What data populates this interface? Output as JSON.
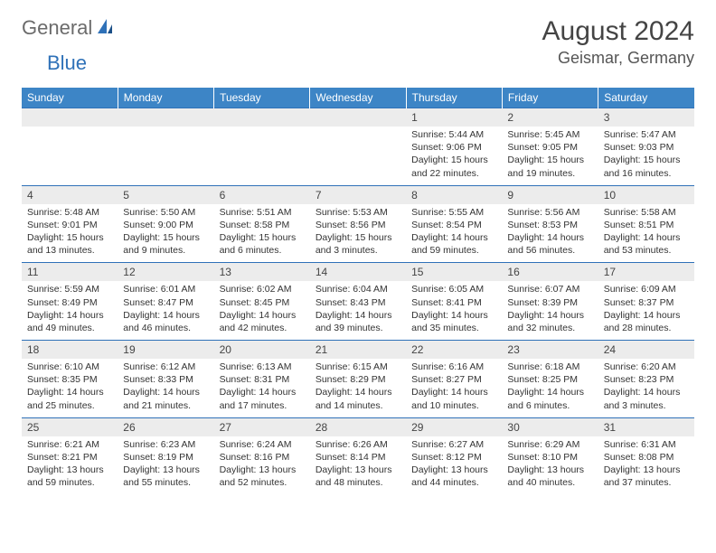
{
  "logo": {
    "general": "General",
    "blue": "Blue"
  },
  "title": "August 2024",
  "location": "Geismar, Germany",
  "colors": {
    "header_bg": "#3d85c6",
    "header_fg": "#ffffff",
    "daynum_bg": "#ececec",
    "rule": "#2f71b8",
    "logo_gray": "#6b6b6b",
    "logo_blue": "#2f71b8"
  },
  "weekdays": [
    "Sunday",
    "Monday",
    "Tuesday",
    "Wednesday",
    "Thursday",
    "Friday",
    "Saturday"
  ],
  "weeks": [
    {
      "nums": [
        "",
        "",
        "",
        "",
        "1",
        "2",
        "3"
      ],
      "cells": [
        {},
        {},
        {},
        {},
        {
          "sr": "Sunrise: 5:44 AM",
          "ss": "Sunset: 9:06 PM",
          "d1": "Daylight: 15 hours",
          "d2": "and 22 minutes."
        },
        {
          "sr": "Sunrise: 5:45 AM",
          "ss": "Sunset: 9:05 PM",
          "d1": "Daylight: 15 hours",
          "d2": "and 19 minutes."
        },
        {
          "sr": "Sunrise: 5:47 AM",
          "ss": "Sunset: 9:03 PM",
          "d1": "Daylight: 15 hours",
          "d2": "and 16 minutes."
        }
      ]
    },
    {
      "nums": [
        "4",
        "5",
        "6",
        "7",
        "8",
        "9",
        "10"
      ],
      "cells": [
        {
          "sr": "Sunrise: 5:48 AM",
          "ss": "Sunset: 9:01 PM",
          "d1": "Daylight: 15 hours",
          "d2": "and 13 minutes."
        },
        {
          "sr": "Sunrise: 5:50 AM",
          "ss": "Sunset: 9:00 PM",
          "d1": "Daylight: 15 hours",
          "d2": "and 9 minutes."
        },
        {
          "sr": "Sunrise: 5:51 AM",
          "ss": "Sunset: 8:58 PM",
          "d1": "Daylight: 15 hours",
          "d2": "and 6 minutes."
        },
        {
          "sr": "Sunrise: 5:53 AM",
          "ss": "Sunset: 8:56 PM",
          "d1": "Daylight: 15 hours",
          "d2": "and 3 minutes."
        },
        {
          "sr": "Sunrise: 5:55 AM",
          "ss": "Sunset: 8:54 PM",
          "d1": "Daylight: 14 hours",
          "d2": "and 59 minutes."
        },
        {
          "sr": "Sunrise: 5:56 AM",
          "ss": "Sunset: 8:53 PM",
          "d1": "Daylight: 14 hours",
          "d2": "and 56 minutes."
        },
        {
          "sr": "Sunrise: 5:58 AM",
          "ss": "Sunset: 8:51 PM",
          "d1": "Daylight: 14 hours",
          "d2": "and 53 minutes."
        }
      ]
    },
    {
      "nums": [
        "11",
        "12",
        "13",
        "14",
        "15",
        "16",
        "17"
      ],
      "cells": [
        {
          "sr": "Sunrise: 5:59 AM",
          "ss": "Sunset: 8:49 PM",
          "d1": "Daylight: 14 hours",
          "d2": "and 49 minutes."
        },
        {
          "sr": "Sunrise: 6:01 AM",
          "ss": "Sunset: 8:47 PM",
          "d1": "Daylight: 14 hours",
          "d2": "and 46 minutes."
        },
        {
          "sr": "Sunrise: 6:02 AM",
          "ss": "Sunset: 8:45 PM",
          "d1": "Daylight: 14 hours",
          "d2": "and 42 minutes."
        },
        {
          "sr": "Sunrise: 6:04 AM",
          "ss": "Sunset: 8:43 PM",
          "d1": "Daylight: 14 hours",
          "d2": "and 39 minutes."
        },
        {
          "sr": "Sunrise: 6:05 AM",
          "ss": "Sunset: 8:41 PM",
          "d1": "Daylight: 14 hours",
          "d2": "and 35 minutes."
        },
        {
          "sr": "Sunrise: 6:07 AM",
          "ss": "Sunset: 8:39 PM",
          "d1": "Daylight: 14 hours",
          "d2": "and 32 minutes."
        },
        {
          "sr": "Sunrise: 6:09 AM",
          "ss": "Sunset: 8:37 PM",
          "d1": "Daylight: 14 hours",
          "d2": "and 28 minutes."
        }
      ]
    },
    {
      "nums": [
        "18",
        "19",
        "20",
        "21",
        "22",
        "23",
        "24"
      ],
      "cells": [
        {
          "sr": "Sunrise: 6:10 AM",
          "ss": "Sunset: 8:35 PM",
          "d1": "Daylight: 14 hours",
          "d2": "and 25 minutes."
        },
        {
          "sr": "Sunrise: 6:12 AM",
          "ss": "Sunset: 8:33 PM",
          "d1": "Daylight: 14 hours",
          "d2": "and 21 minutes."
        },
        {
          "sr": "Sunrise: 6:13 AM",
          "ss": "Sunset: 8:31 PM",
          "d1": "Daylight: 14 hours",
          "d2": "and 17 minutes."
        },
        {
          "sr": "Sunrise: 6:15 AM",
          "ss": "Sunset: 8:29 PM",
          "d1": "Daylight: 14 hours",
          "d2": "and 14 minutes."
        },
        {
          "sr": "Sunrise: 6:16 AM",
          "ss": "Sunset: 8:27 PM",
          "d1": "Daylight: 14 hours",
          "d2": "and 10 minutes."
        },
        {
          "sr": "Sunrise: 6:18 AM",
          "ss": "Sunset: 8:25 PM",
          "d1": "Daylight: 14 hours",
          "d2": "and 6 minutes."
        },
        {
          "sr": "Sunrise: 6:20 AM",
          "ss": "Sunset: 8:23 PM",
          "d1": "Daylight: 14 hours",
          "d2": "and 3 minutes."
        }
      ]
    },
    {
      "nums": [
        "25",
        "26",
        "27",
        "28",
        "29",
        "30",
        "31"
      ],
      "cells": [
        {
          "sr": "Sunrise: 6:21 AM",
          "ss": "Sunset: 8:21 PM",
          "d1": "Daylight: 13 hours",
          "d2": "and 59 minutes."
        },
        {
          "sr": "Sunrise: 6:23 AM",
          "ss": "Sunset: 8:19 PM",
          "d1": "Daylight: 13 hours",
          "d2": "and 55 minutes."
        },
        {
          "sr": "Sunrise: 6:24 AM",
          "ss": "Sunset: 8:16 PM",
          "d1": "Daylight: 13 hours",
          "d2": "and 52 minutes."
        },
        {
          "sr": "Sunrise: 6:26 AM",
          "ss": "Sunset: 8:14 PM",
          "d1": "Daylight: 13 hours",
          "d2": "and 48 minutes."
        },
        {
          "sr": "Sunrise: 6:27 AM",
          "ss": "Sunset: 8:12 PM",
          "d1": "Daylight: 13 hours",
          "d2": "and 44 minutes."
        },
        {
          "sr": "Sunrise: 6:29 AM",
          "ss": "Sunset: 8:10 PM",
          "d1": "Daylight: 13 hours",
          "d2": "and 40 minutes."
        },
        {
          "sr": "Sunrise: 6:31 AM",
          "ss": "Sunset: 8:08 PM",
          "d1": "Daylight: 13 hours",
          "d2": "and 37 minutes."
        }
      ]
    }
  ]
}
